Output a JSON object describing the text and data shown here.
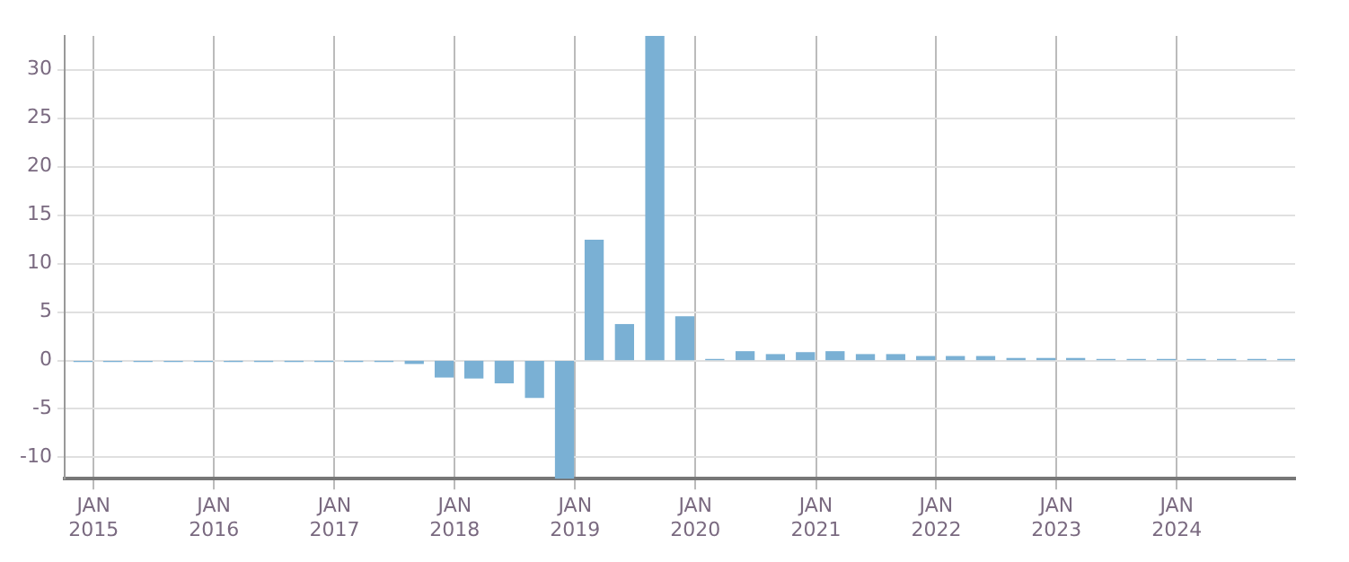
{
  "chart_data": {
    "type": "bar",
    "x": [
      "2014-11-30",
      "2015-02-28",
      "2015-05-31",
      "2015-08-31",
      "2015-11-30",
      "2016-02-29",
      "2016-05-31",
      "2016-08-31",
      "2016-11-30",
      "2017-02-28",
      "2017-05-31",
      "2017-08-31",
      "2017-11-30",
      "2018-02-28",
      "2018-05-31",
      "2018-08-31",
      "2018-11-30",
      "2019-02-28",
      "2019-05-31",
      "2019-08-31",
      "2019-11-30",
      "2020-02-29",
      "2020-05-31",
      "2020-08-31",
      "2020-11-30",
      "2021-02-28",
      "2021-05-31",
      "2021-08-31",
      "2021-11-30",
      "2022-02-28",
      "2022-05-31",
      "2022-08-31",
      "2022-11-30",
      "2023-02-28",
      "2023-05-31",
      "2023-08-31",
      "2023-11-30",
      "2024-02-29",
      "2024-05-31",
      "2024-08-31",
      "2024-11-30"
    ],
    "values": [
      -0.1,
      -0.1,
      -0.1,
      -0.1,
      -0.1,
      -0.1,
      -0.1,
      -0.1,
      -0.1,
      -0.1,
      -0.1,
      -0.3,
      -1.7,
      -1.8,
      -2.3,
      -3.8,
      -12.2,
      12.4,
      3.7,
      33.5,
      4.5,
      0.1,
      0.9,
      0.6,
      0.8,
      0.9,
      0.6,
      0.6,
      0.4,
      0.4,
      0.4,
      0.2,
      0.2,
      0.2,
      0.1,
      0.1,
      0.1,
      0.1,
      0.1,
      0.1,
      0.1
    ],
    "color": "#7ab0d4",
    "xlim": [
      "2014-10-05",
      "2024-12-25"
    ],
    "xticks": [
      {
        "value": "2015-01-01",
        "label": "JAN 2015"
      },
      {
        "value": "2016-01-01",
        "label": "JAN 2016"
      },
      {
        "value": "2017-01-01",
        "label": "JAN 2017"
      },
      {
        "value": "2018-01-01",
        "label": "JAN 2018"
      },
      {
        "value": "2019-01-01",
        "label": "JAN 2019"
      },
      {
        "value": "2020-01-01",
        "label": "JAN 2020"
      },
      {
        "value": "2021-01-01",
        "label": "JAN 2021"
      },
      {
        "value": "2022-01-01",
        "label": "JAN 2022"
      },
      {
        "value": "2023-01-01",
        "label": "JAN 2023"
      },
      {
        "value": "2024-01-01",
        "label": "JAN 2024"
      }
    ],
    "ylim": [
      -12.2,
      33.5
    ],
    "yticks": [
      -10,
      -5,
      0,
      5,
      10,
      15,
      20,
      25,
      30
    ],
    "grid": true,
    "legend": false
  }
}
